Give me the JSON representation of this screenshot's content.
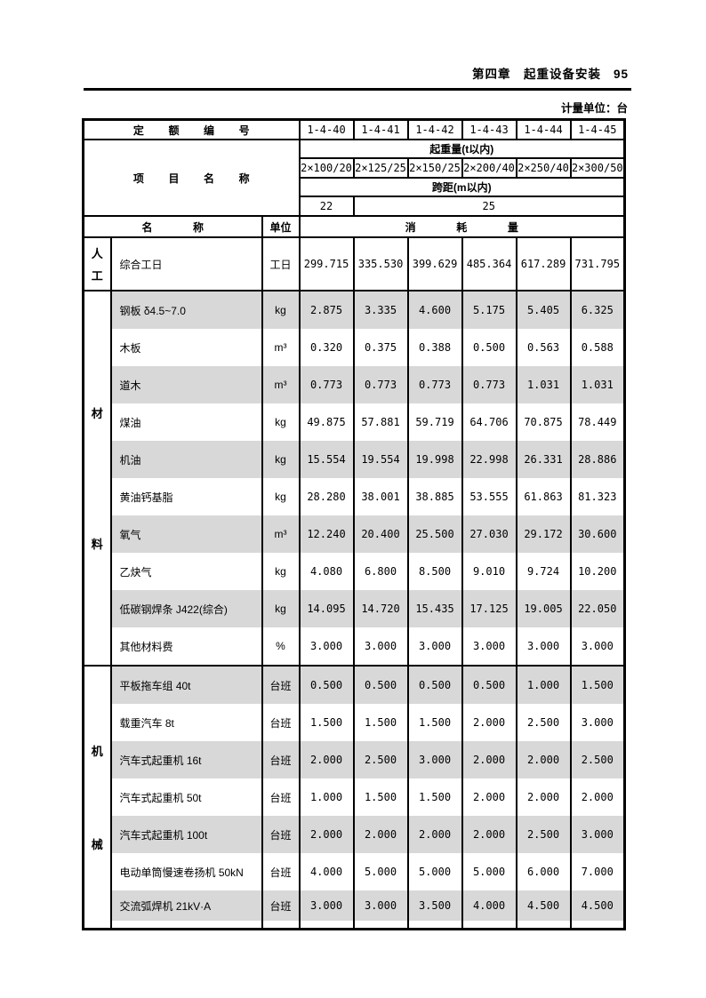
{
  "page": {
    "chapter_header": "第四章　起重设备安装",
    "page_number": "95",
    "unit_note": "计量单位：台"
  },
  "table": {
    "quota_label": "定额编号",
    "quota_numbers": [
      "1-4-40",
      "1-4-41",
      "1-4-42",
      "1-4-43",
      "1-4-44",
      "1-4-45"
    ],
    "project_label": "项目名称",
    "lifting_label": "起重量(t以内)",
    "specs": [
      "2×100/20",
      "2×125/25",
      "2×150/25",
      "2×200/40",
      "2×250/40",
      "2×300/50"
    ],
    "span_label": "跨距(m以内)",
    "span_values": [
      "22",
      "25"
    ],
    "name_header": "名称",
    "unit_header": "单位",
    "consumption_header": "消耗量",
    "sections": [
      {
        "category": "人工",
        "rows": [
          {
            "name": "综合工日",
            "unit": "工日",
            "values": [
              "299.715",
              "335.530",
              "399.629",
              "485.364",
              "617.289",
              "731.795"
            ],
            "shaded": false
          }
        ]
      },
      {
        "category": "材料",
        "rows": [
          {
            "name": "钢板 δ4.5~7.0",
            "unit": "kg",
            "values": [
              "2.875",
              "3.335",
              "4.600",
              "5.175",
              "5.405",
              "6.325"
            ],
            "shaded": true
          },
          {
            "name": "木板",
            "unit": "m³",
            "values": [
              "0.320",
              "0.375",
              "0.388",
              "0.500",
              "0.563",
              "0.588"
            ],
            "shaded": false
          },
          {
            "name": "道木",
            "unit": "m³",
            "values": [
              "0.773",
              "0.773",
              "0.773",
              "0.773",
              "1.031",
              "1.031"
            ],
            "shaded": true
          },
          {
            "name": "煤油",
            "unit": "kg",
            "values": [
              "49.875",
              "57.881",
              "59.719",
              "64.706",
              "70.875",
              "78.449"
            ],
            "shaded": false
          },
          {
            "name": "机油",
            "unit": "kg",
            "values": [
              "15.554",
              "19.554",
              "19.998",
              "22.998",
              "26.331",
              "28.886"
            ],
            "shaded": true
          },
          {
            "name": "黄油钙基脂",
            "unit": "kg",
            "values": [
              "28.280",
              "38.001",
              "38.885",
              "53.555",
              "61.863",
              "81.323"
            ],
            "shaded": false
          },
          {
            "name": "氧气",
            "unit": "m³",
            "values": [
              "12.240",
              "20.400",
              "25.500",
              "27.030",
              "29.172",
              "30.600"
            ],
            "shaded": true
          },
          {
            "name": "乙炔气",
            "unit": "kg",
            "values": [
              "4.080",
              "6.800",
              "8.500",
              "9.010",
              "9.724",
              "10.200"
            ],
            "shaded": false
          },
          {
            "name": "低碳钢焊条 J422(综合)",
            "unit": "kg",
            "values": [
              "14.095",
              "14.720",
              "15.435",
              "17.125",
              "19.005",
              "22.050"
            ],
            "shaded": true
          },
          {
            "name": "其他材料费",
            "unit": "%",
            "values": [
              "3.000",
              "3.000",
              "3.000",
              "3.000",
              "3.000",
              "3.000"
            ],
            "shaded": false
          }
        ]
      },
      {
        "category": "机械",
        "rows": [
          {
            "name": "平板拖车组 40t",
            "unit": "台班",
            "values": [
              "0.500",
              "0.500",
              "0.500",
              "0.500",
              "1.000",
              "1.500"
            ],
            "shaded": true
          },
          {
            "name": "载重汽车 8t",
            "unit": "台班",
            "values": [
              "1.500",
              "1.500",
              "1.500",
              "2.000",
              "2.500",
              "3.000"
            ],
            "shaded": false
          },
          {
            "name": "汽车式起重机 16t",
            "unit": "台班",
            "values": [
              "2.000",
              "2.500",
              "3.000",
              "2.000",
              "2.000",
              "2.500"
            ],
            "shaded": true
          },
          {
            "name": "汽车式起重机 50t",
            "unit": "台班",
            "values": [
              "1.000",
              "1.500",
              "1.500",
              "2.000",
              "2.000",
              "2.000"
            ],
            "shaded": false
          },
          {
            "name": "汽车式起重机 100t",
            "unit": "台班",
            "values": [
              "2.000",
              "2.000",
              "2.000",
              "2.000",
              "2.500",
              "3.000"
            ],
            "shaded": true
          },
          {
            "name": "电动单筒慢速卷扬机 50kN",
            "unit": "台班",
            "values": [
              "4.000",
              "5.000",
              "5.000",
              "5.000",
              "6.000",
              "7.000"
            ],
            "shaded": false
          },
          {
            "name": "交流弧焊机 21kV·A",
            "unit": "台班",
            "values": [
              "3.000",
              "3.000",
              "3.500",
              "4.000",
              "4.500",
              "4.500"
            ],
            "shaded": true
          }
        ]
      }
    ]
  }
}
